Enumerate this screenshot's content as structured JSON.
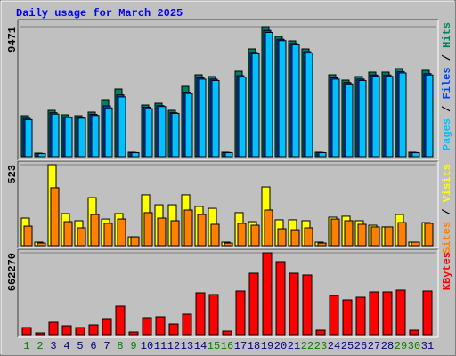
{
  "chart_data": [
    {
      "type": "bar",
      "title": "Daily usage for March 2025",
      "ylim": [
        0,
        9471
      ],
      "yticks": [
        9471
      ],
      "legend_separator": " / ",
      "series": [
        {
          "name": "Hits",
          "color": "#008060",
          "values": [
            2984,
            260,
            3373,
            3049,
            2984,
            3243,
            4152,
            4930,
            324,
            3762,
            3892,
            3373,
            5125,
            5968,
            5838,
            324,
            6228,
            7849,
            9471,
            8757,
            8433,
            7849,
            324,
            5968,
            5579,
            5838,
            6163,
            6163,
            6422,
            324,
            6293
          ]
        },
        {
          "name": "Files",
          "color": "#0040ff",
          "values": [
            2790,
            230,
            3200,
            2900,
            2850,
            3080,
            3700,
            4500,
            300,
            3600,
            3720,
            3200,
            4700,
            5750,
            5650,
            300,
            5900,
            7600,
            9200,
            8550,
            8250,
            7650,
            300,
            5750,
            5400,
            5650,
            5950,
            5950,
            6200,
            300,
            6050
          ]
        },
        {
          "name": "Pages",
          "color": "#00c0ff",
          "values": [
            2700,
            220,
            3100,
            2850,
            2800,
            3000,
            3550,
            4350,
            290,
            3500,
            3650,
            3150,
            4600,
            5650,
            5550,
            290,
            5800,
            7500,
            9050,
            8450,
            8150,
            7550,
            290,
            5650,
            5300,
            5550,
            5850,
            5850,
            6100,
            290,
            5950
          ]
        }
      ]
    },
    {
      "type": "bar",
      "ylim": [
        0,
        523
      ],
      "yticks": [
        523
      ],
      "legend_separator": " / ",
      "series": [
        {
          "name": "Visits",
          "color": "#ffff00",
          "values": [
            178,
            23,
            523,
            207,
            161,
            310,
            172,
            207,
            57,
            328,
            264,
            264,
            328,
            253,
            241,
            23,
            213,
            155,
            379,
            167,
            167,
            161,
            23,
            184,
            190,
            161,
            132,
            121,
            201,
            23,
            149
          ]
        },
        {
          "name": "Sites",
          "color": "#ff8000",
          "values": [
            126,
            17,
            374,
            155,
            115,
            201,
            144,
            172,
            57,
            213,
            178,
            161,
            230,
            201,
            138,
            17,
            144,
            132,
            230,
            109,
            103,
            115,
            17,
            172,
            161,
            138,
            121,
            121,
            149,
            23,
            144
          ]
        }
      ]
    },
    {
      "type": "bar",
      "ylim": [
        0,
        662270
      ],
      "yticks": [
        662270
      ],
      "categories": [
        "1",
        "2",
        "3",
        "4",
        "5",
        "6",
        "7",
        "8",
        "9",
        "10",
        "11",
        "12",
        "13",
        "14",
        "15",
        "16",
        "17",
        "18",
        "19",
        "20",
        "21",
        "22",
        "23",
        "24",
        "25",
        "26",
        "27",
        "28",
        "29",
        "30",
        "31"
      ],
      "category_colors": [
        "#008000",
        "#008000",
        "#000080",
        "#000080",
        "#000080",
        "#000080",
        "#000080",
        "#008000",
        "#008000",
        "#000080",
        "#000080",
        "#000080",
        "#000080",
        "#000080",
        "#008000",
        "#008000",
        "#000080",
        "#000080",
        "#000080",
        "#000080",
        "#000080",
        "#008000",
        "#008000",
        "#000080",
        "#000080",
        "#000080",
        "#000080",
        "#000080",
        "#008000",
        "#008000",
        "#000080"
      ],
      "series": [
        {
          "name": "KBytes",
          "color": "#ff0000",
          "values": [
            57600,
            14400,
            100800,
            72000,
            57600,
            79200,
            129600,
            230400,
            21600,
            136800,
            144000,
            86400,
            165600,
            338400,
            324000,
            28800,
            352800,
            496800,
            662270,
            590400,
            496800,
            482400,
            36000,
            316800,
            280800,
            302400,
            345600,
            345600,
            360000,
            36000,
            352800
          ]
        }
      ]
    }
  ]
}
